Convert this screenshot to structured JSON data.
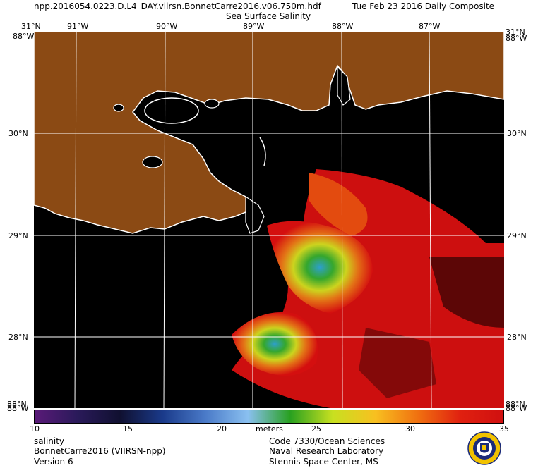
{
  "header": {
    "filename": "npp.2016054.0223.D.L4_DAY.viirsn.BonnetCarre2016.v06.750m.hdf",
    "date": "Tue Feb 23 2016 Daily Composite",
    "product": "Sea Surface Salinity"
  },
  "map": {
    "lon_labels": [
      "91°W",
      "90°W",
      "89°W",
      "88°W",
      "87°W"
    ],
    "lat_labels": [
      "30°N",
      "29°N",
      "28°N"
    ],
    "corner_labels": {
      "top_left_lat": "31°N",
      "top_left_lon": "88°W",
      "top_right_lat": "31°N",
      "top_right_lon": "88°W",
      "bottom_left_lat": "88°N",
      "bottom_left_lon": "88°W",
      "bottom_right_lat": "88°N",
      "bottom_right_lon": "88°W"
    },
    "colors": {
      "land": "#8b4a14",
      "water_nodata": "#000000",
      "coastline": "#ffffff",
      "grid": "#ffffff"
    }
  },
  "colorbar": {
    "ticks": [
      "10",
      "15",
      "20",
      "25",
      "30",
      "35"
    ],
    "units": "meters",
    "range": [
      10,
      35
    ],
    "colors": [
      "#5a1a78",
      "#2a1a5a",
      "#101030",
      "#1a3a8a",
      "#4a7ac8",
      "#8ac0f0",
      "#28a020",
      "#c8e020",
      "#f8c020",
      "#f07010",
      "#e02010",
      "#d01010"
    ]
  },
  "footer": {
    "left": [
      "salinity",
      "BonnetCarre2016 (VIIRSN-npp)",
      "Version 6"
    ],
    "right": [
      "Code 7330/Ocean Sciences",
      "Naval Research Laboratory",
      "Stennis Space Center, MS"
    ]
  },
  "seal_icon": "nrl-seal-icon"
}
